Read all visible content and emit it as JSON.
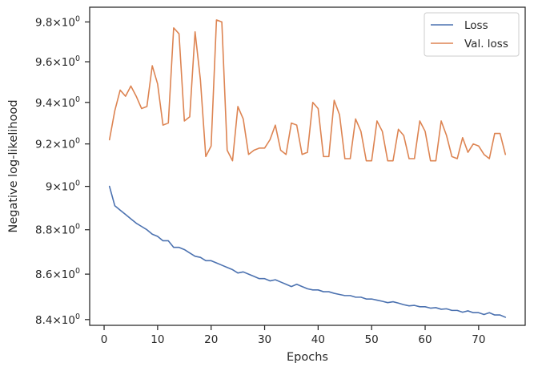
{
  "chart_data": {
    "type": "line",
    "title": "",
    "xlabel": "Epochs",
    "ylabel": "Negative log-likelihood",
    "xlim": [
      -2.7,
      78.7
    ],
    "ylim": [
      8.375,
      9.875
    ],
    "yscale": "log",
    "grid": false,
    "legend_position": "top-right",
    "x_ticks": [
      0,
      10,
      20,
      30,
      40,
      50,
      60,
      70
    ],
    "x_tick_labels": [
      "0",
      "10",
      "20",
      "30",
      "40",
      "50",
      "60",
      "70"
    ],
    "y_ticks": [
      8.4,
      8.6,
      8.8,
      9.0,
      9.2,
      9.4,
      9.6,
      9.8
    ],
    "y_tick_mantissas": [
      "8.4",
      "8.6",
      "8.8",
      "9",
      "9.2",
      "9.4",
      "9.6",
      "9.8"
    ],
    "y_tick_suffix": "×10",
    "y_tick_exponent": "0",
    "x": [
      1,
      2,
      3,
      4,
      5,
      6,
      7,
      8,
      9,
      10,
      11,
      12,
      13,
      14,
      15,
      16,
      17,
      18,
      19,
      20,
      21,
      22,
      23,
      24,
      25,
      26,
      27,
      28,
      29,
      30,
      31,
      32,
      33,
      34,
      35,
      36,
      37,
      38,
      39,
      40,
      41,
      42,
      43,
      44,
      45,
      46,
      47,
      48,
      49,
      50,
      51,
      52,
      53,
      54,
      55,
      56,
      57,
      58,
      59,
      60,
      61,
      62,
      63,
      64,
      65,
      66,
      67,
      68,
      69,
      70,
      71,
      72,
      73,
      74,
      75
    ],
    "series": [
      {
        "name": "Loss",
        "color": "#4c72b0",
        "values": [
          9.0,
          8.91,
          8.89,
          8.87,
          8.85,
          8.83,
          8.815,
          8.8,
          8.78,
          8.77,
          8.75,
          8.75,
          8.72,
          8.72,
          8.71,
          8.695,
          8.68,
          8.675,
          8.66,
          8.66,
          8.65,
          8.64,
          8.63,
          8.62,
          8.605,
          8.61,
          8.6,
          8.59,
          8.58,
          8.58,
          8.57,
          8.575,
          8.565,
          8.555,
          8.545,
          8.555,
          8.545,
          8.535,
          8.53,
          8.53,
          8.522,
          8.522,
          8.515,
          8.51,
          8.505,
          8.505,
          8.498,
          8.498,
          8.49,
          8.49,
          8.485,
          8.48,
          8.474,
          8.478,
          8.472,
          8.465,
          8.46,
          8.462,
          8.456,
          8.456,
          8.45,
          8.452,
          8.445,
          8.447,
          8.44,
          8.44,
          8.432,
          8.438,
          8.43,
          8.43,
          8.422,
          8.43,
          8.42,
          8.42,
          8.41
        ]
      },
      {
        "name": "Val. loss",
        "color": "#dd8452",
        "values": [
          9.22,
          9.36,
          9.46,
          9.43,
          9.48,
          9.43,
          9.37,
          9.38,
          9.58,
          9.49,
          9.29,
          9.3,
          9.77,
          9.74,
          9.31,
          9.33,
          9.75,
          9.51,
          9.14,
          9.19,
          9.81,
          9.8,
          9.17,
          9.12,
          9.38,
          9.32,
          9.15,
          9.17,
          9.18,
          9.18,
          9.22,
          9.29,
          9.17,
          9.15,
          9.3,
          9.29,
          9.15,
          9.16,
          9.4,
          9.37,
          9.14,
          9.14,
          9.41,
          9.34,
          9.13,
          9.13,
          9.32,
          9.26,
          9.12,
          9.12,
          9.31,
          9.26,
          9.12,
          9.12,
          9.27,
          9.24,
          9.13,
          9.13,
          9.31,
          9.26,
          9.12,
          9.12,
          9.31,
          9.24,
          9.14,
          9.13,
          9.23,
          9.16,
          9.2,
          9.19,
          9.15,
          9.13,
          9.25,
          9.25,
          9.15
        ]
      }
    ]
  }
}
